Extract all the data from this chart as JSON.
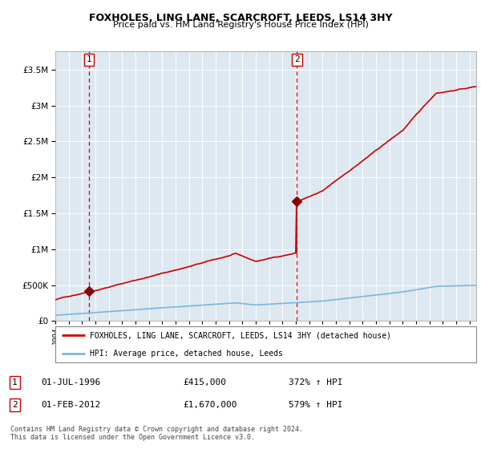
{
  "title": "FOXHOLES, LING LANE, SCARCROFT, LEEDS, LS14 3HY",
  "subtitle": "Price paid vs. HM Land Registry's House Price Index (HPI)",
  "sale1_date": 1996.5,
  "sale1_price": 415000,
  "sale2_date": 2012.083,
  "sale2_price": 1670000,
  "legend_line1": "FOXHOLES, LING LANE, SCARCROFT, LEEDS, LS14 3HY (detached house)",
  "legend_line2": "HPI: Average price, detached house, Leeds",
  "footer": "Contains HM Land Registry data © Crown copyright and database right 2024.\nThis data is licensed under the Open Government Licence v3.0.",
  "hpi_color": "#7ab8d9",
  "price_color": "#cc0000",
  "marker_color": "#8b0000",
  "annotation_box_color": "#cc0000",
  "dashed_line_color": "#cc0000",
  "bg_color": "#dde8f0",
  "ylim_max": 3750000,
  "xlim_start": 1994.0,
  "xlim_end": 2025.5,
  "yticks": [
    0,
    500000,
    1000000,
    1500000,
    2000000,
    2500000,
    3000000,
    3500000
  ],
  "ytick_labels": [
    "£0",
    "£500K",
    "£1M",
    "£1.5M",
    "£2M",
    "£2.5M",
    "£3M",
    "£3.5M"
  ]
}
